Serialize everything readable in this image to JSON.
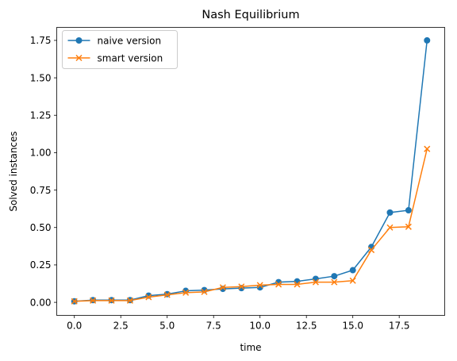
{
  "chart_data": {
    "type": "line",
    "title": "Nash Equilibrium",
    "xlabel": "time",
    "ylabel": "Solved instances",
    "xlim": [
      -0.95,
      19.95
    ],
    "ylim": [
      -0.087,
      1.837
    ],
    "xticks": [
      0.0,
      2.5,
      5.0,
      7.5,
      10.0,
      12.5,
      15.0,
      17.5
    ],
    "xtick_labels": [
      "0.0",
      "2.5",
      "5.0",
      "7.5",
      "10.0",
      "12.5",
      "15.0",
      "17.5"
    ],
    "yticks": [
      0.0,
      0.25,
      0.5,
      0.75,
      1.0,
      1.25,
      1.5,
      1.75
    ],
    "ytick_labels": [
      "0.00",
      "0.25",
      "0.50",
      "0.75",
      "1.00",
      "1.25",
      "1.50",
      "1.75"
    ],
    "grid": false,
    "legend_position": "top-left",
    "x": [
      0,
      1,
      2,
      3,
      4,
      5,
      6,
      7,
      8,
      9,
      10,
      11,
      12,
      13,
      14,
      15,
      16,
      17,
      18,
      19
    ],
    "series": [
      {
        "name": "naive version",
        "color": "#1f77b4",
        "marker": "circle",
        "values": [
          0.007,
          0.015,
          0.015,
          0.015,
          0.045,
          0.055,
          0.077,
          0.082,
          0.09,
          0.095,
          0.1,
          0.135,
          0.14,
          0.157,
          0.175,
          0.215,
          0.37,
          0.6,
          0.615,
          1.75
        ]
      },
      {
        "name": "smart version",
        "color": "#ff7f0e",
        "marker": "x",
        "values": [
          0.007,
          0.012,
          0.012,
          0.012,
          0.035,
          0.05,
          0.065,
          0.07,
          0.1,
          0.105,
          0.115,
          0.12,
          0.12,
          0.135,
          0.135,
          0.145,
          0.35,
          0.5,
          0.505,
          1.025
        ]
      }
    ]
  }
}
